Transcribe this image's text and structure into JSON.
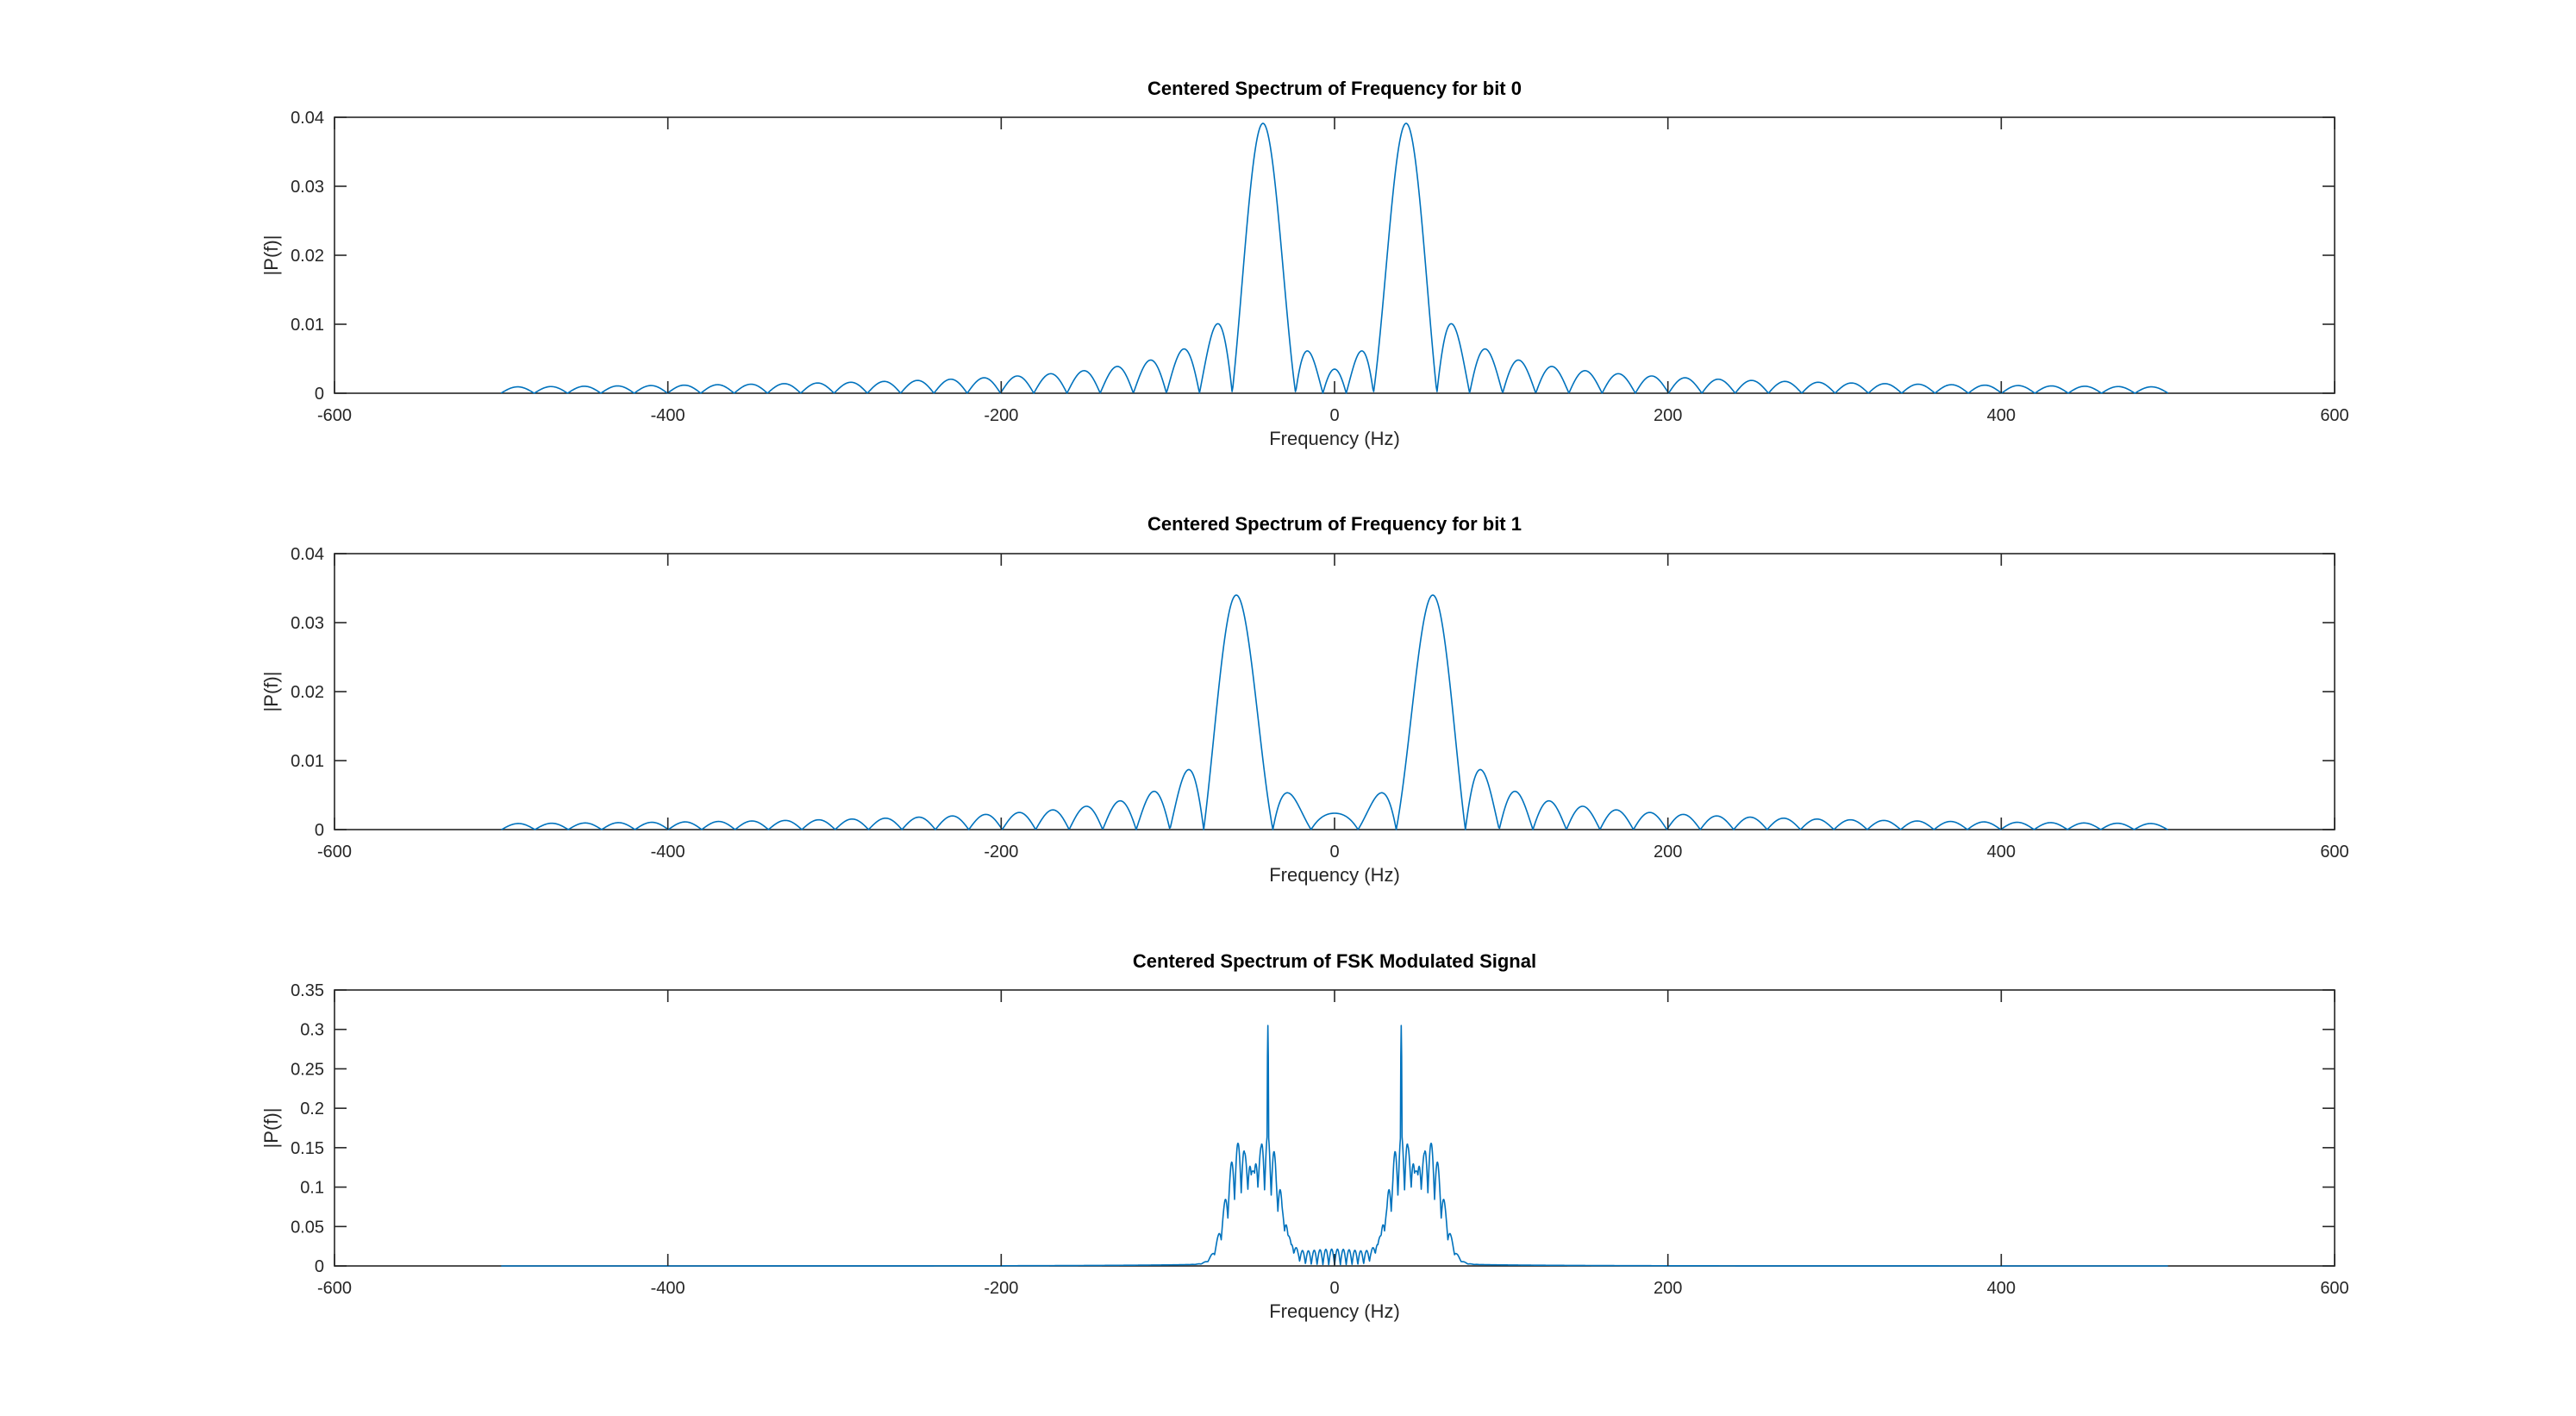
{
  "figure": {
    "background": "#ffffff",
    "axis_color": "#262626"
  },
  "chart_data": [
    {
      "type": "line",
      "title": "Centered Spectrum of Frequency for bit 0",
      "xlabel": "Frequency (Hz)",
      "ylabel": "|P(f)|",
      "xlim": [
        -600,
        600
      ],
      "ylim": [
        0,
        0.04
      ],
      "xticks": [
        -600,
        -400,
        -200,
        0,
        200,
        400,
        600
      ],
      "xtick_labels": [
        "-600",
        "-400",
        "-200",
        "0",
        "200",
        "400",
        "600"
      ],
      "yticks": [
        0,
        0.01,
        0.02,
        0.03,
        0.04
      ],
      "ytick_labels": [
        "0",
        "0.01",
        "0.02",
        "0.03",
        "0.04"
      ],
      "grid": false,
      "color": "#0072bd",
      "signal": {
        "kind": "tone",
        "tone_hz": 42,
        "bit_duration_s": 0.05,
        "frequency_range_hz": [
          -500,
          500
        ],
        "peak": 0.0373
      }
    },
    {
      "type": "line",
      "title": "Centered Spectrum of Frequency for bit 1",
      "xlabel": "Frequency (Hz)",
      "ylabel": "|P(f)|",
      "xlim": [
        -600,
        600
      ],
      "ylim": [
        0,
        0.04
      ],
      "xticks": [
        -600,
        -400,
        -200,
        0,
        200,
        400,
        600
      ],
      "xtick_labels": [
        "-600",
        "-400",
        "-200",
        "0",
        "200",
        "400",
        "600"
      ],
      "yticks": [
        0,
        0.01,
        0.02,
        0.03,
        0.04
      ],
      "ytick_labels": [
        "0",
        "0.01",
        "0.02",
        "0.03",
        "0.04"
      ],
      "grid": false,
      "color": "#0072bd",
      "signal": {
        "kind": "tone",
        "tone_hz": 58,
        "bit_duration_s": 0.05,
        "frequency_range_hz": [
          -500,
          500
        ],
        "peak": 0.035
      }
    },
    {
      "type": "line",
      "title": "Centered Spectrum of FSK Modulated Signal",
      "xlabel": "Frequency (Hz)",
      "ylabel": "|P(f)|",
      "xlim": [
        -600,
        600
      ],
      "ylim": [
        0,
        0.35
      ],
      "xticks": [
        -600,
        -400,
        -200,
        0,
        200,
        400,
        600
      ],
      "xtick_labels": [
        "-600",
        "-400",
        "-200",
        "0",
        "200",
        "400",
        "600"
      ],
      "yticks": [
        0,
        0.05,
        0.1,
        0.15,
        0.2,
        0.25,
        0.3,
        0.35
      ],
      "ytick_labels": [
        "0",
        "0.05",
        "0.1",
        "0.15",
        "0.2",
        "0.25",
        "0.3",
        "0.35"
      ],
      "grid": false,
      "color": "#0072bd",
      "signal": {
        "kind": "fsk",
        "tone_0_hz": 40,
        "tone_1_hz": 58,
        "frequency_range_hz": [
          -500,
          500
        ],
        "carrier_peak": 0.305,
        "sideband_peak": 0.155,
        "sideband_spacing_hz": 4
      }
    }
  ]
}
